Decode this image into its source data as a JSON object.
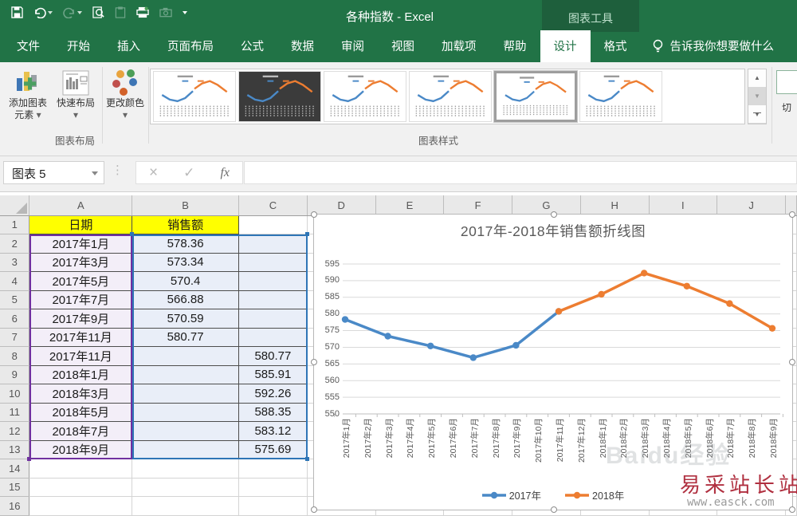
{
  "app": {
    "title": "各种指数 - Excel",
    "context_tools": "图表工具",
    "tell_me": "告诉我你想要做什么"
  },
  "qat": {
    "icons": [
      {
        "name": "save-icon",
        "enabled": true,
        "dropdown": false
      },
      {
        "name": "undo-icon",
        "enabled": true,
        "dropdown": true
      },
      {
        "name": "redo-icon",
        "enabled": false,
        "dropdown": true
      },
      {
        "name": "print-preview-icon",
        "enabled": true,
        "dropdown": false
      },
      {
        "name": "paste-icon",
        "enabled": false,
        "dropdown": false
      },
      {
        "name": "quick-print-icon",
        "enabled": true,
        "dropdown": false
      },
      {
        "name": "camera-icon",
        "enabled": false,
        "dropdown": false
      },
      {
        "name": "qat-customize-icon",
        "enabled": true,
        "dropdown": false
      }
    ]
  },
  "tabs": [
    {
      "label": "文件",
      "active": false
    },
    {
      "label": "开始",
      "active": false
    },
    {
      "label": "插入",
      "active": false
    },
    {
      "label": "页面布局",
      "active": false
    },
    {
      "label": "公式",
      "active": false
    },
    {
      "label": "数据",
      "active": false
    },
    {
      "label": "审阅",
      "active": false
    },
    {
      "label": "视图",
      "active": false
    },
    {
      "label": "加载项",
      "active": false
    },
    {
      "label": "帮助",
      "active": false
    },
    {
      "label": "设计",
      "active": true
    },
    {
      "label": "格式",
      "active": false
    }
  ],
  "ribbon": {
    "add_chart_element": "添加图表元素",
    "quick_layout": "快速布局",
    "change_colors": "更改颜色",
    "group_chart_layout": "图表布局",
    "group_chart_styles": "图表样式",
    "switch_row_col_partial": "切",
    "style_gallery": {
      "thumb_count": 6,
      "dark_index": 1,
      "selected_index": 4
    }
  },
  "formula_bar": {
    "name_box": "图表 5",
    "cancel": "×",
    "enter": "✓",
    "fx": "fx",
    "value": ""
  },
  "sheet": {
    "columns": [
      "A",
      "B",
      "C",
      "D",
      "E",
      "F",
      "G",
      "H",
      "I",
      "J"
    ],
    "rows": [
      {
        "n": "1",
        "a": "日期",
        "b": "销售额",
        "c": ""
      },
      {
        "n": "2",
        "a": "2017年1月",
        "b": "578.36",
        "c": ""
      },
      {
        "n": "3",
        "a": "2017年3月",
        "b": "573.34",
        "c": ""
      },
      {
        "n": "4",
        "a": "2017年5月",
        "b": "570.4",
        "c": ""
      },
      {
        "n": "5",
        "a": "2017年7月",
        "b": "566.88",
        "c": ""
      },
      {
        "n": "6",
        "a": "2017年9月",
        "b": "570.59",
        "c": ""
      },
      {
        "n": "7",
        "a": "2017年11月",
        "b": "580.77",
        "c": ""
      },
      {
        "n": "8",
        "a": "2017年11月",
        "b": "",
        "c": "580.77"
      },
      {
        "n": "9",
        "a": "2018年1月",
        "b": "",
        "c": "585.91"
      },
      {
        "n": "10",
        "a": "2018年3月",
        "b": "",
        "c": "592.26"
      },
      {
        "n": "11",
        "a": "2018年5月",
        "b": "",
        "c": "588.35"
      },
      {
        "n": "12",
        "a": "2018年7月",
        "b": "",
        "c": "583.12"
      },
      {
        "n": "13",
        "a": "2018年9月",
        "b": "",
        "c": "575.69"
      },
      {
        "n": "14",
        "a": "",
        "b": "",
        "c": ""
      },
      {
        "n": "15",
        "a": "",
        "b": "",
        "c": ""
      },
      {
        "n": "16",
        "a": "",
        "b": "",
        "c": ""
      }
    ],
    "selection": {
      "category_range": "A2:A13",
      "value_range": "B2:C13"
    }
  },
  "chart_data": {
    "type": "line",
    "title": "2017年-2018年销售额折线图",
    "categories": [
      "2017年1月",
      "2017年2月",
      "2017年3月",
      "2017年4月",
      "2017年5月",
      "2017年6月",
      "2017年7月",
      "2017年8月",
      "2017年9月",
      "2017年10月",
      "2017年11月",
      "2017年12月",
      "2018年1月",
      "2018年2月",
      "2018年3月",
      "2018年4月",
      "2018年5月",
      "2018年6月",
      "2018年7月",
      "2018年8月",
      "2018年9月"
    ],
    "series": [
      {
        "name": "2017年",
        "color": "#4a89c7",
        "x": [
          0,
          2,
          4,
          6,
          8,
          10
        ],
        "y": [
          578.36,
          573.34,
          570.4,
          566.88,
          570.59,
          580.77
        ]
      },
      {
        "name": "2018年",
        "color": "#ed7d31",
        "x": [
          10,
          12,
          14,
          16,
          18,
          20
        ],
        "y": [
          580.77,
          585.91,
          592.26,
          588.35,
          583.12,
          575.69
        ]
      }
    ],
    "ylim": [
      550,
      595
    ],
    "ytick_step": 5,
    "grid": true,
    "legend_position": "bottom"
  },
  "watermarks": {
    "faint": "Baidu经验",
    "site": "易采站长站",
    "url": "www.easck.com"
  },
  "colors": {
    "excel_green": "#217346",
    "context_green": "#1e5f3c",
    "series_blue": "#4a89c7",
    "series_orange": "#ed7d31",
    "selection_blue": "#2e75b6",
    "selection_purple": "#7030a0",
    "header_yellow": "#ffff00"
  }
}
